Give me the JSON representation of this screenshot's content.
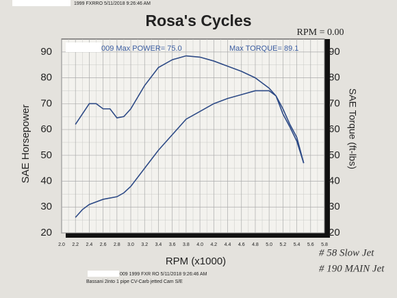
{
  "chart_data": {
    "type": "line",
    "header": "1999 FXRRO   5/11/2018 9:26:46 AM",
    "title": "Rosa's Cycles",
    "rpm_readout": "RPM = 0.00",
    "power_note": "009  Max POWER= 75.0",
    "torque_note": "Max TORQUE= 89.1",
    "x_label": "RPM (x1000)",
    "y_label": "SAE Horsepower",
    "y2_label": "SAE Torque (ft-lbs)",
    "footer": "009    1999 FXR    RO 5/11/2018 9:26:46 AM",
    "footer_note": "Bassani 2into 1 pipe CV-Carb jetted Cam S/E",
    "handwritten": [
      "# 58 Slow Jet",
      "# 190 MAIN Jet"
    ],
    "xlim": [
      2.0,
      5.8
    ],
    "xticks": [
      {
        "value": 2,
        "label": "2.0"
      },
      2.2,
      2.4,
      2.6,
      2.8,
      {
        "value": 3,
        "label": "3.0"
      },
      3.2,
      3.4,
      3.6,
      3.8,
      {
        "value": 4,
        "label": "4.0"
      },
      4.2,
      4.4,
      4.6,
      4.8,
      {
        "value": 5,
        "label": "5.0"
      },
      5.2,
      5.4,
      5.6,
      5.8
    ],
    "ylim": [
      20,
      95
    ],
    "yticks": [
      20,
      30,
      40,
      50,
      60,
      70,
      80,
      90
    ],
    "y2lim": [
      20,
      95
    ],
    "y2ticks": [
      20,
      30,
      40,
      50,
      60,
      70,
      80,
      90
    ],
    "grid": true,
    "series": [
      {
        "name": "SAE Horsepower",
        "color": "#2d4a86",
        "x": [
          2.2,
          2.3,
          2.4,
          2.6,
          2.8,
          2.9,
          3.0,
          3.2,
          3.4,
          3.6,
          3.8,
          4.0,
          4.2,
          4.4,
          4.6,
          4.8,
          5.0,
          5.1,
          5.2,
          5.3,
          5.4,
          5.5
        ],
        "values": [
          26,
          29,
          31,
          33,
          34,
          35.5,
          38,
          45,
          52,
          58,
          64,
          67,
          70,
          72,
          73.5,
          75,
          75,
          73,
          68,
          62,
          57,
          47
        ]
      },
      {
        "name": "SAE Torque (ft-lbs)",
        "color": "#2d4a86",
        "axis": "y2",
        "x": [
          2.2,
          2.3,
          2.4,
          2.5,
          2.6,
          2.7,
          2.8,
          2.9,
          3.0,
          3.2,
          3.4,
          3.6,
          3.8,
          4.0,
          4.2,
          4.4,
          4.6,
          4.8,
          5.0,
          5.1,
          5.2,
          5.3,
          5.4,
          5.5
        ],
        "values": [
          62,
          66,
          70,
          70,
          68,
          68,
          64.5,
          65,
          68,
          77,
          84,
          87,
          88.5,
          88,
          86.5,
          84.5,
          82.5,
          80,
          76,
          73,
          66,
          61,
          55.5,
          47
        ]
      }
    ]
  }
}
